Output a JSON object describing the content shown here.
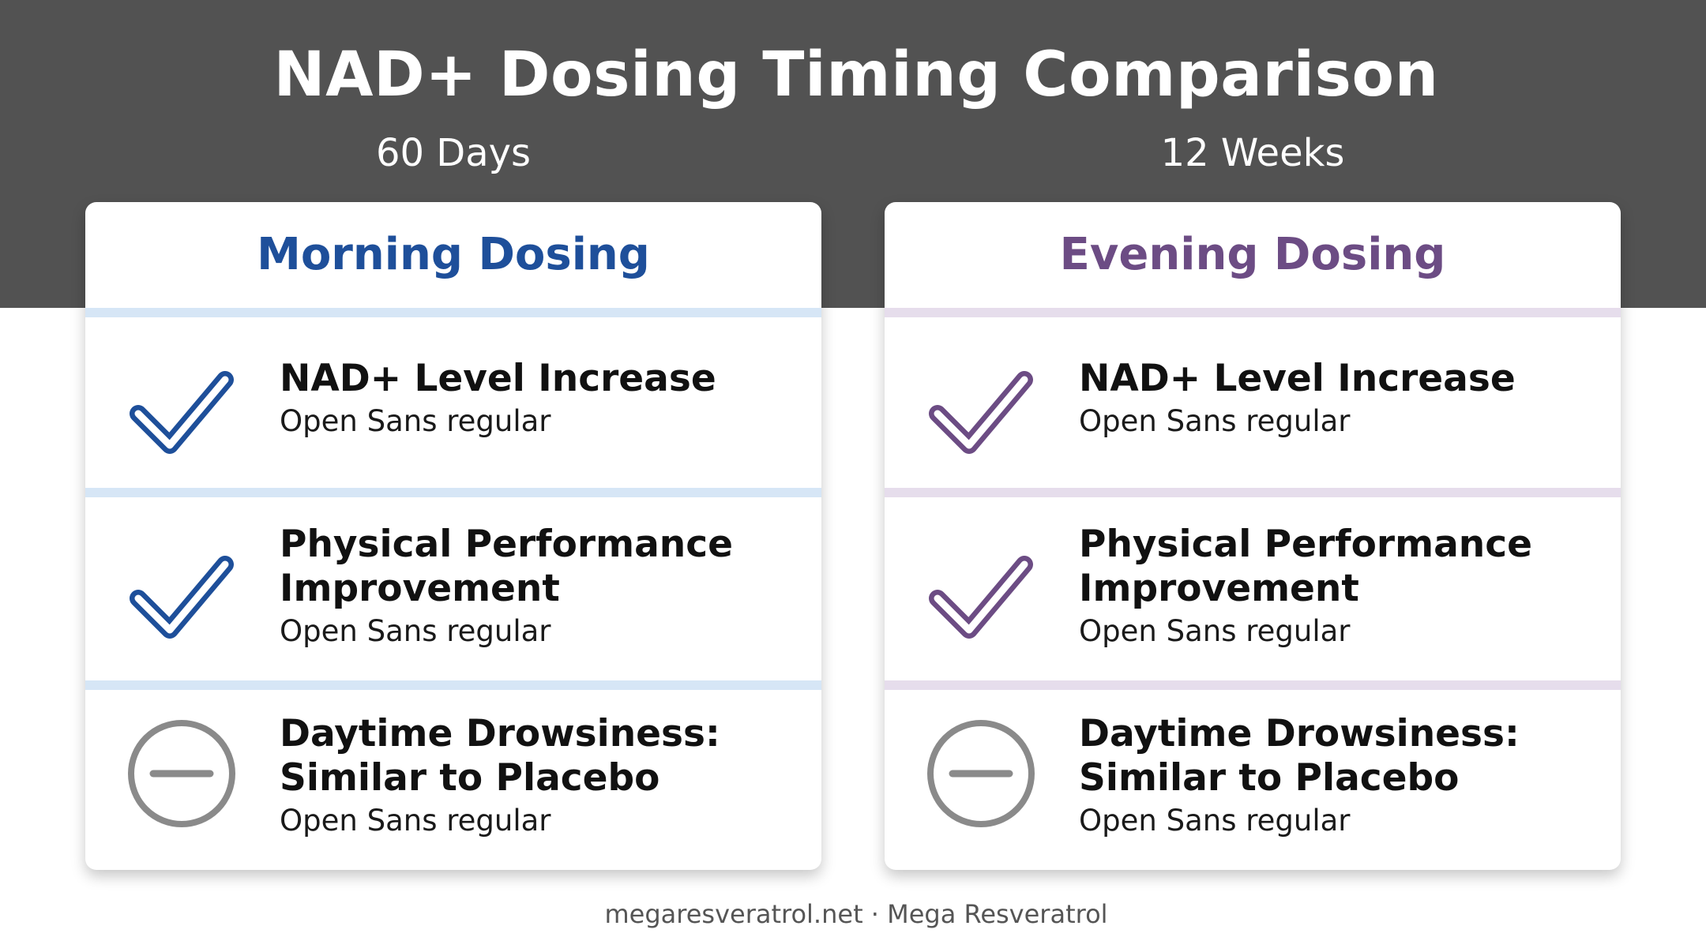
{
  "title": "NAD+ Dosing Timing Comparison",
  "colors": {
    "header_band": "#525252",
    "morning_accent": "#1e4f9a",
    "evening_accent": "#6c4c84",
    "neutral_icon": "#8a8a8a"
  },
  "columns": [
    {
      "duration": "60 Days",
      "heading": "Morning Dosing",
      "items": [
        {
          "icon": "check-icon",
          "title": "NAD+ Level Increase",
          "subtitle": "Open Sans regular"
        },
        {
          "icon": "check-icon",
          "title": "Physical Performance\nImprovement",
          "subtitle": "Open Sans regular"
        },
        {
          "icon": "minus-circle-icon",
          "title": "Daytime Drowsiness:\nSimilar to Placebo",
          "subtitle": "Open Sans regular"
        }
      ]
    },
    {
      "duration": "12 Weeks",
      "heading": "Evening Dosing",
      "items": [
        {
          "icon": "check-icon",
          "title": "NAD+ Level Increase",
          "subtitle": "Open Sans regular"
        },
        {
          "icon": "check-icon",
          "title": "Physical Performance\nImprovement",
          "subtitle": "Open Sans regular"
        },
        {
          "icon": "minus-circle-icon",
          "title": "Daytime Drowsiness:\nSimilar to Placebo",
          "subtitle": "Open Sans regular"
        }
      ]
    }
  ],
  "footer": "megaresveratrol.net · Mega Resveratrol"
}
